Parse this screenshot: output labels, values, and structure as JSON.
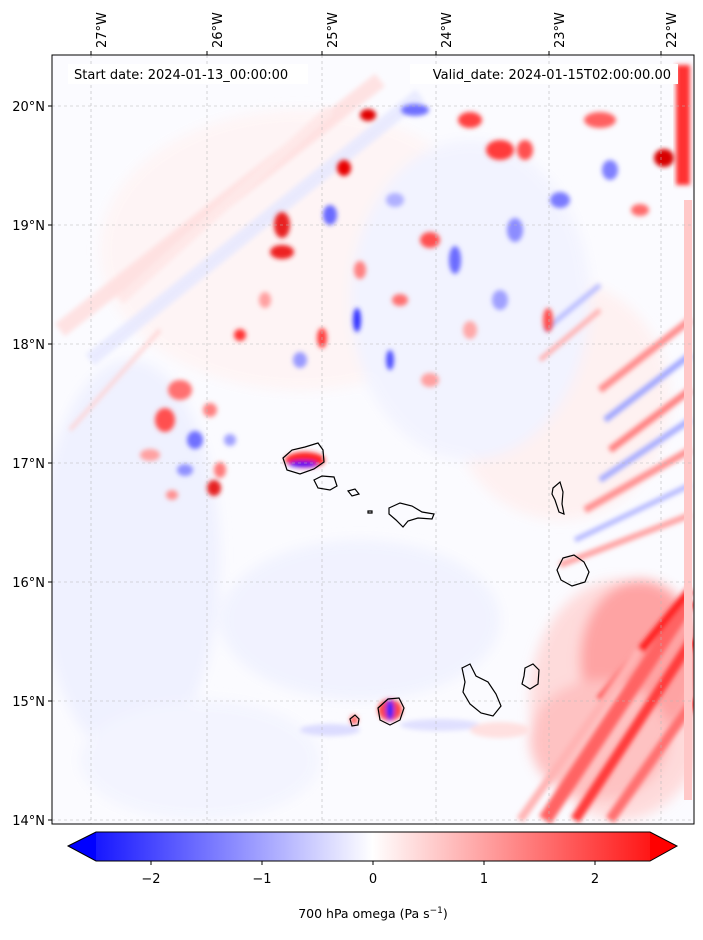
{
  "header": {
    "start_label": "Start date: 2024-01-13_00:00:00",
    "valid_label": "Valid_date: 2024-01-15T02:00:00.00"
  },
  "map": {
    "lon_ticks": [
      "27°W",
      "26°W",
      "25°W",
      "24°W",
      "23°W",
      "22°W"
    ],
    "lat_ticks": [
      "20°N",
      "19°N",
      "18°N",
      "17°N",
      "16°N",
      "15°N",
      "14°N"
    ],
    "extent": {
      "lon": [
        -27.35,
        -21.75
      ],
      "lat": [
        13.95,
        20.45
      ]
    },
    "grid": true
  },
  "colorbar": {
    "ticks": [
      "−2",
      "−1",
      "0",
      "1",
      "2"
    ],
    "tick_values": [
      -2,
      -1,
      0,
      1,
      2
    ],
    "range": [
      -2.5,
      2.5
    ],
    "label": "700 hPa omega (Pa s",
    "label_sup": "−1",
    "label_tail": ")",
    "cmap": "bwr",
    "extend": "both"
  },
  "colors": {
    "negative": "#0000ff",
    "zero": "#ffffff",
    "positive": "#ff0000"
  }
}
